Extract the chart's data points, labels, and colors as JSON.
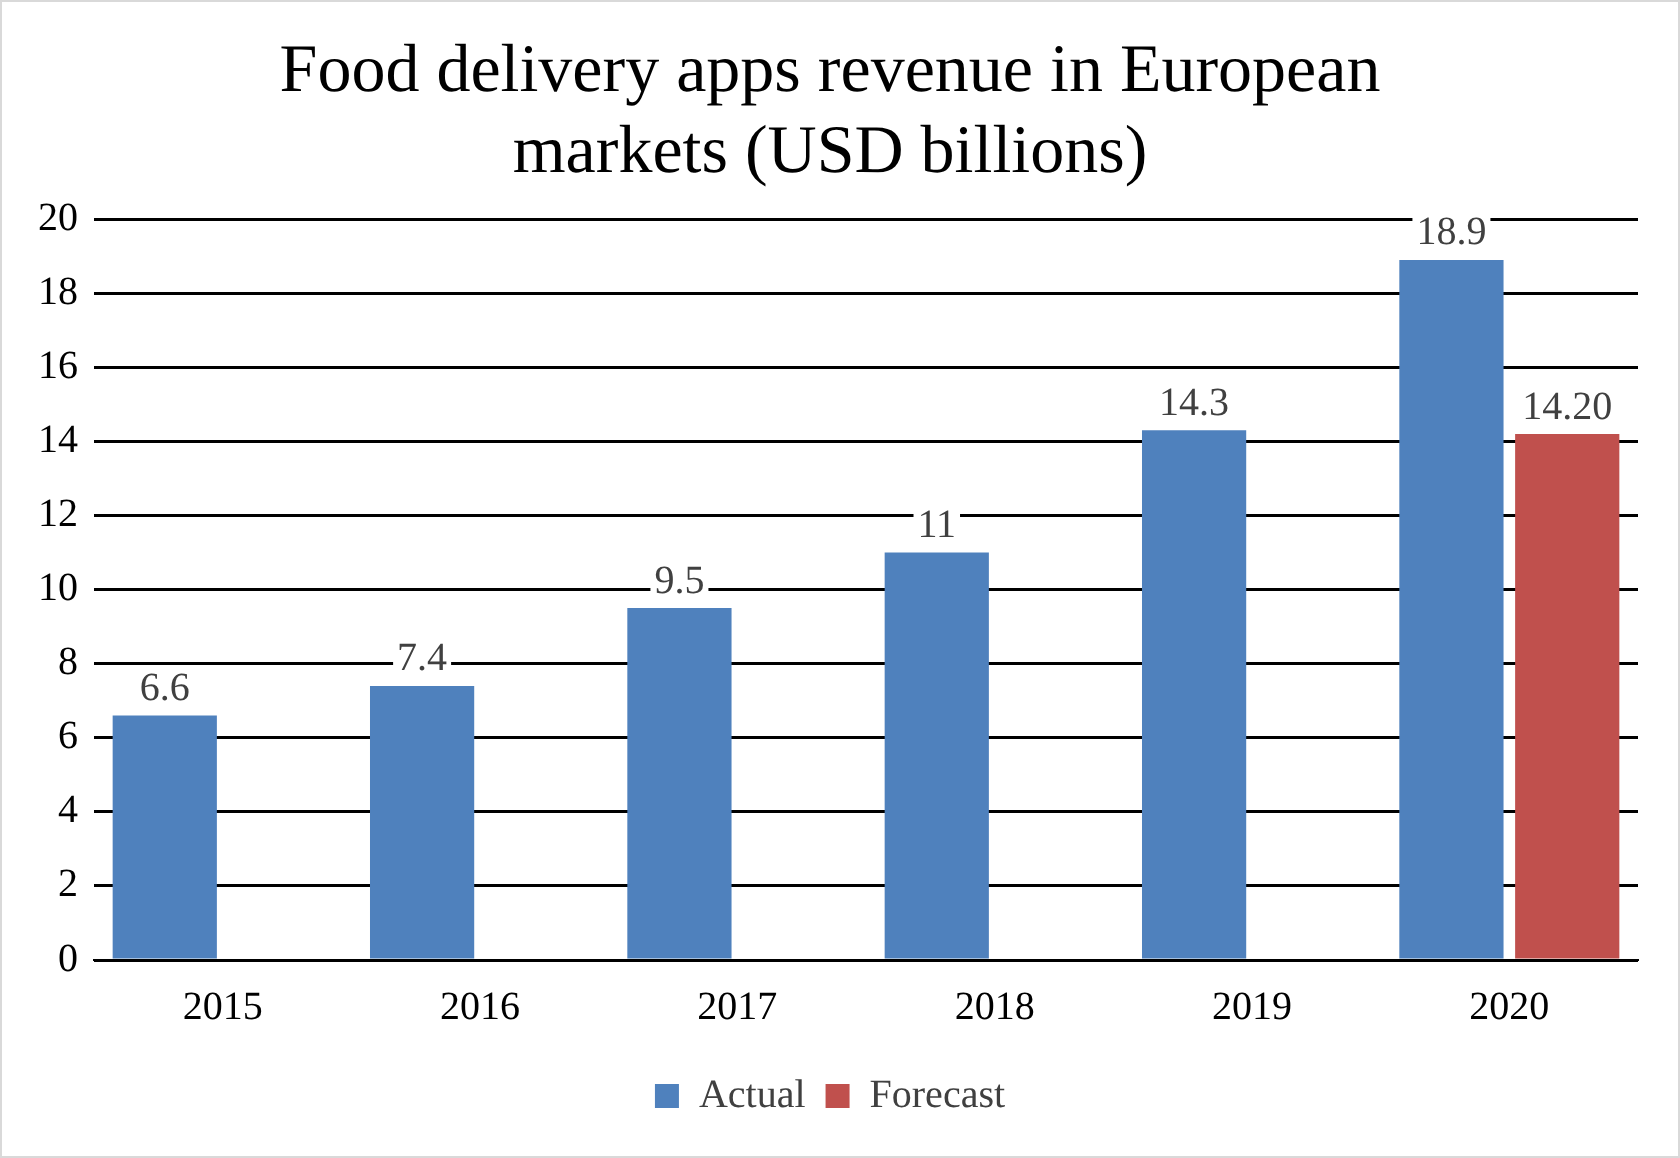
{
  "chart_data": {
    "type": "bar",
    "title": "Food delivery apps revenue in European markets (USD billions)",
    "categories": [
      "2015",
      "2016",
      "2017",
      "2018",
      "2019",
      "2020"
    ],
    "series": [
      {
        "name": "Actual",
        "color": "#4f81bd",
        "values": [
          6.6,
          7.4,
          9.5,
          11,
          14.3,
          18.9
        ],
        "value_labels": [
          "6.6",
          "7.4",
          "9.5",
          "11",
          "14.3",
          "18.9"
        ]
      },
      {
        "name": "Forecast",
        "color": "#c0504d",
        "values": [
          null,
          null,
          null,
          null,
          null,
          14.2
        ],
        "value_labels": [
          null,
          null,
          null,
          null,
          null,
          "14.20"
        ]
      }
    ],
    "ylim": [
      0,
      20
    ],
    "yticks": [
      0,
      2,
      4,
      6,
      8,
      10,
      12,
      14,
      16,
      18,
      20
    ],
    "grid": "y",
    "legend": "bottom"
  }
}
